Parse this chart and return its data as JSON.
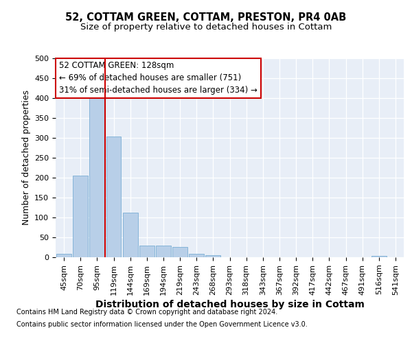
{
  "title": "52, COTTAM GREEN, COTTAM, PRESTON, PR4 0AB",
  "subtitle": "Size of property relative to detached houses in Cottam",
  "xlabel": "Distribution of detached houses by size in Cottam",
  "ylabel": "Number of detached properties",
  "categories": [
    "45sqm",
    "70sqm",
    "95sqm",
    "119sqm",
    "144sqm",
    "169sqm",
    "194sqm",
    "219sqm",
    "243sqm",
    "268sqm",
    "293sqm",
    "318sqm",
    "343sqm",
    "367sqm",
    "392sqm",
    "417sqm",
    "442sqm",
    "467sqm",
    "491sqm",
    "516sqm",
    "541sqm"
  ],
  "values": [
    8,
    205,
    405,
    303,
    112,
    30,
    29,
    26,
    8,
    6,
    0,
    0,
    0,
    0,
    0,
    0,
    0,
    0,
    0,
    3,
    0
  ],
  "bar_color": "#b8cfe8",
  "bar_edge_color": "#7aadd4",
  "vline_color": "#cc0000",
  "annotation_lines": [
    "52 COTTAM GREEN: 128sqm",
    "← 69% of detached houses are smaller (751)",
    "31% of semi-detached houses are larger (334) →"
  ],
  "annotation_box_facecolor": "#ffffff",
  "annotation_box_edgecolor": "#cc0000",
  "ylim": [
    0,
    500
  ],
  "yticks": [
    0,
    50,
    100,
    150,
    200,
    250,
    300,
    350,
    400,
    450,
    500
  ],
  "footer_line1": "Contains HM Land Registry data © Crown copyright and database right 2024.",
  "footer_line2": "Contains public sector information licensed under the Open Government Licence v3.0.",
  "bg_color": "#e8eef7",
  "title_fontsize": 10.5,
  "subtitle_fontsize": 9.5,
  "xlabel_fontsize": 10,
  "ylabel_fontsize": 9,
  "tick_fontsize": 8,
  "annotation_fontsize": 8.5,
  "footer_fontsize": 7
}
